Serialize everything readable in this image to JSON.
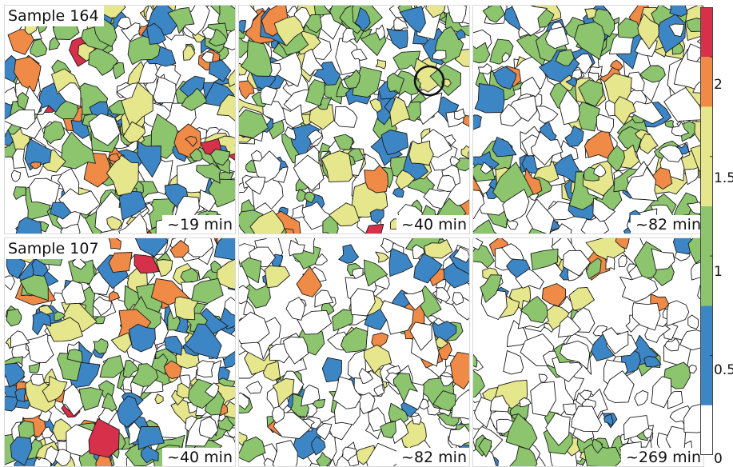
{
  "samples": [
    {
      "label": "Sample 164",
      "times": [
        "~19 min",
        "~40 min",
        "~82 min"
      ]
    },
    {
      "label": "Sample 107",
      "times": [
        "~40 min",
        "~82 min",
        "~269 min"
      ]
    }
  ],
  "colorbar": {
    "ticks": [
      "2",
      "1.5",
      "1",
      "0.5",
      "0"
    ],
    "tick_values": [
      2,
      1.5,
      1,
      0.5,
      0
    ],
    "range": [
      0,
      2.25
    ],
    "bands": [
      {
        "from": 0,
        "to": 0.25,
        "color": "#ffffff"
      },
      {
        "from": 0.25,
        "to": 0.75,
        "color": "#3d86c6"
      },
      {
        "from": 0.75,
        "to": 1.25,
        "color": "#8cc56e"
      },
      {
        "from": 1.25,
        "to": 1.75,
        "color": "#e6e68c"
      },
      {
        "from": 1.75,
        "to": 2.0,
        "color": "#ef8a47"
      },
      {
        "from": 2.0,
        "to": 2.25,
        "color": "#d7304a"
      }
    ]
  },
  "colors": {
    "white": "#ffffff",
    "blue": "#3d86c6",
    "green": "#8cc56e",
    "yellow": "#e6e68c",
    "orange": "#ef8a47",
    "red": "#d7304a",
    "boundary": "#1a1a1a"
  },
  "annotation": {
    "icon": "circle-marker"
  }
}
